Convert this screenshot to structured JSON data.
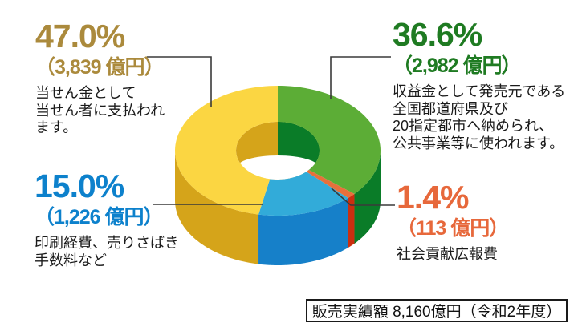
{
  "chart_data": {
    "type": "pie",
    "subtype": "3d-donut",
    "direction": "clockwise",
    "start_angle_deg": 0,
    "unit": "億円",
    "total_label": "販売実績額 8,160億円（令和2年度）",
    "total_amount_oku_yen": 8160,
    "fiscal_year": "令和2年度",
    "legend_position": "callouts",
    "inner_wall": {
      "left": "#d5a41a",
      "right": "#0a7c28"
    },
    "hole_color": "#ffffff",
    "callout_line_color": "#3a3a3a",
    "slices": [
      {
        "id": "public-works",
        "percent": 36.6,
        "amount_oku_yen": 2982,
        "amount_text": "2,982 億円",
        "label": "収益金として発売元である全国都道府県及び20指定都市へ納められ、公共事業等に使われます。",
        "color": "#5cad36",
        "side_color": "#0a7c28"
      },
      {
        "id": "social",
        "percent": 1.4,
        "amount_oku_yen": 113,
        "amount_text": "113 億円",
        "label": "社会貢献広報費",
        "color": "#e7703c",
        "side_color": "#cb2f10"
      },
      {
        "id": "expense",
        "percent": 15.0,
        "amount_oku_yen": 1226,
        "amount_text": "1,226 億円",
        "label": "印刷経費、売りさばき手数料など",
        "color": "#32abd9",
        "side_color": "#1680c9"
      },
      {
        "id": "prize",
        "percent": 47.0,
        "amount_oku_yen": 3839,
        "amount_text": "3,839 億円",
        "label": "当せん金として当せん者に支払われます。",
        "color": "#fbd642",
        "side_color": "#d5a41a"
      }
    ]
  },
  "labels": {
    "prize": {
      "percent": "47.0%",
      "amount": "（3,839 億円）",
      "color": "#ab8a3c",
      "desc_lines": [
        "当せん金として",
        "当せん者に支払われ",
        "ます。"
      ]
    },
    "public_works": {
      "percent": "36.6%",
      "amount": "（2,982 億円）",
      "color": "#1f7b22",
      "desc_lines": [
        "収益金として発売元である",
        "全国都道府県及び",
        "20指定都市へ納められ、",
        "公共事業等に使われます。"
      ]
    },
    "expense": {
      "percent": "15.0%",
      "amount": "（1,226 億円）",
      "color": "#0d81cc",
      "desc_lines": [
        "印刷経費、売りさばき",
        "手数料など"
      ]
    },
    "social": {
      "percent": "1.4%",
      "amount": "（113 億円）",
      "color": "#e7683b",
      "desc_lines": [
        "社会貢献広報費"
      ]
    }
  },
  "footer": {
    "sales_note": "販売実績額 8,160億円（令和2年度）"
  }
}
